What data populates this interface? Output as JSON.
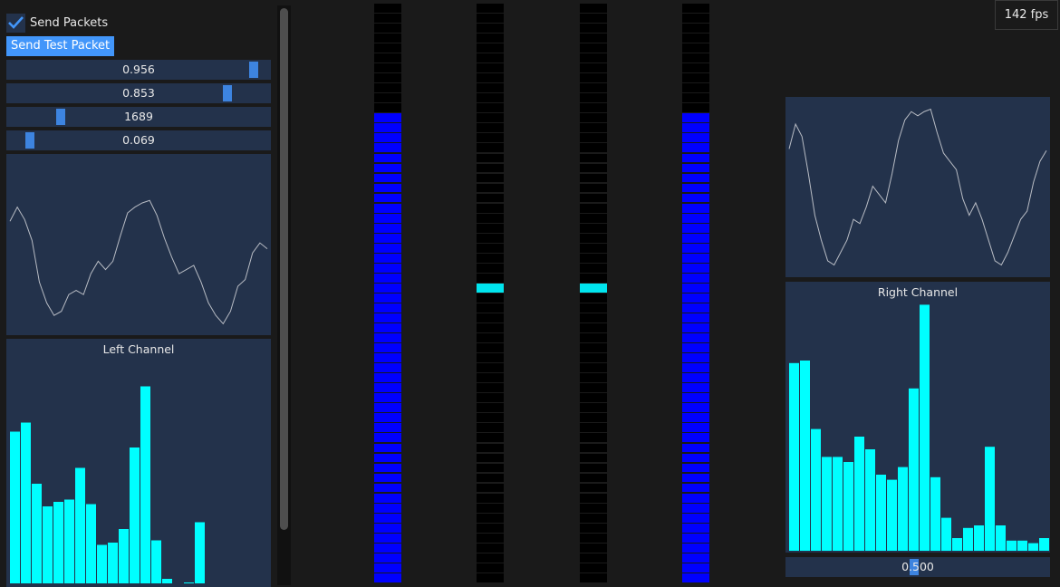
{
  "controls": {
    "send_packets_label": "Send Packets",
    "send_packets_checked": true,
    "send_test_packet_label": "Send Test Packet",
    "sliders": [
      {
        "value": "0.956",
        "level": 0.956
      },
      {
        "value": "0.853",
        "level": 0.853
      },
      {
        "value": "1689",
        "level": 0.19
      },
      {
        "value": "0.069",
        "level": 0.069
      }
    ]
  },
  "fps": "142 fps",
  "colors": {
    "accent": "#4296fa",
    "panel": "#23324b",
    "bar": "#00ffff",
    "meter_on": "#0000ff",
    "meter_peak": "#00e5ee",
    "wave": "#b8bcc4"
  },
  "meters": [
    {
      "type": "fill",
      "level": 0.82
    },
    {
      "type": "peak",
      "level": 0.5
    },
    {
      "type": "peak",
      "level": 0.5
    },
    {
      "type": "fill",
      "level": 0.82
    }
  ],
  "left_waveform": [
    0.28,
    0.45,
    0.3,
    0.05,
    -0.45,
    -0.7,
    -0.85,
    -0.8,
    -0.6,
    -0.55,
    -0.6,
    -0.35,
    -0.2,
    -0.3,
    -0.2,
    0.1,
    0.38,
    0.45,
    0.5,
    0.53,
    0.35,
    0.08,
    -0.15,
    -0.35,
    -0.3,
    -0.25,
    -0.45,
    -0.7,
    -0.85,
    -0.95,
    -0.8,
    -0.5,
    -0.42,
    -0.1,
    0.02,
    -0.05
  ],
  "right_waveform": [
    0.46,
    0.76,
    0.61,
    0.16,
    -0.34,
    -0.64,
    -0.89,
    -0.94,
    -0.79,
    -0.64,
    -0.39,
    -0.44,
    -0.24,
    0.01,
    -0.09,
    -0.19,
    0.16,
    0.56,
    0.81,
    0.91,
    0.86,
    0.91,
    0.94,
    0.66,
    0.41,
    0.31,
    0.21,
    -0.14,
    -0.34,
    -0.19,
    -0.39,
    -0.64,
    -0.89,
    -0.94,
    -0.79,
    -0.59,
    -0.39,
    -0.29,
    0.06,
    0.31,
    0.44
  ],
  "chart_data": [
    {
      "type": "bar",
      "title": "Left Channel",
      "values": [
        0.67,
        0.71,
        0.44,
        0.34,
        0.36,
        0.37,
        0.51,
        0.35,
        0.17,
        0.18,
        0.24,
        0.6,
        0.87,
        0.19,
        0.02,
        0,
        0.004,
        0.27,
        0,
        0,
        0,
        0,
        0,
        0
      ],
      "ylim": [
        0,
        1
      ]
    },
    {
      "type": "bar",
      "title": "Right Channel",
      "values": [
        0.74,
        0.75,
        0.48,
        0.37,
        0.37,
        0.35,
        0.45,
        0.4,
        0.3,
        0.28,
        0.33,
        0.64,
        0.97,
        0.29,
        0.13,
        0.05,
        0.09,
        0.1,
        0.41,
        0.1,
        0.04,
        0.04,
        0.03,
        0.05
      ],
      "ylim": [
        0,
        1
      ]
    }
  ],
  "right_slider": {
    "value": "0.500",
    "level": 0.5
  }
}
